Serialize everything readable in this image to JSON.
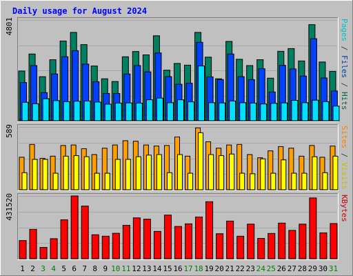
{
  "chart_data": {
    "type": "bar",
    "title": "Daily usage for August 2024",
    "categories": [
      "1",
      "2",
      "3",
      "4",
      "5",
      "6",
      "7",
      "8",
      "9",
      "10",
      "11",
      "12",
      "13",
      "14",
      "15",
      "16",
      "17",
      "18",
      "19",
      "20",
      "21",
      "22",
      "23",
      "24",
      "25",
      "26",
      "27",
      "28",
      "29",
      "30",
      "31"
    ],
    "weekend_days": [
      "3",
      "4",
      "10",
      "11",
      "17",
      "18",
      "24",
      "25",
      "31"
    ],
    "panels": [
      {
        "key": "hits",
        "max_label": "4801",
        "ylim": [
          0,
          4801
        ],
        "legend": [
          {
            "label": "Pages",
            "color": "#00c0d0"
          },
          {
            "label": " / ",
            "color": "#404040"
          },
          {
            "label": "Files",
            "color": "#0040a0"
          },
          {
            "label": " / ",
            "color": "#404040"
          },
          {
            "label": "Hits",
            "color": "#006040"
          }
        ],
        "series": [
          {
            "name": "Hits",
            "color": "#008060",
            "values": [
              2370,
              3180,
              2100,
              2910,
              3800,
              4210,
              3630,
              2610,
              2000,
              1870,
              3050,
              3300,
              3140,
              4050,
              2410,
              2730,
              2650,
              4210,
              3030,
              2000,
              3780,
              2930,
              2630,
              2910,
              2030,
              3310,
              3440,
              2850,
              4580,
              2800,
              2350
            ]
          },
          {
            "name": "Files",
            "color": "#0040ff",
            "values": [
              1820,
              2630,
              1340,
              2230,
              3050,
              3340,
              2700,
              1860,
              1300,
              1300,
              2230,
              2630,
              2330,
              3230,
              2100,
              1740,
              1790,
              3740,
              2090,
              1960,
              3180,
              2100,
              1960,
              2480,
              1370,
              2640,
              2470,
              2130,
              3910,
              2040,
              1420
            ]
          },
          {
            "name": "Pages",
            "color": "#00e0ff",
            "values": [
              880,
              810,
              1050,
              960,
              910,
              930,
              940,
              890,
              790,
              840,
              850,
              840,
              1000,
              1080,
              860,
              1000,
              900,
              2610,
              860,
              850,
              940,
              860,
              840,
              800,
              830,
              850,
              970,
              860,
              980,
              910,
              700
            ]
          }
        ]
      },
      {
        "key": "visits",
        "max_label": "589",
        "ylim": [
          0,
          589
        ],
        "legend": [
          {
            "label": "Sites",
            "color": "#ff8000"
          },
          {
            "label": " / ",
            "color": "#404040"
          },
          {
            "label": "Visits",
            "color": "#c0c000"
          }
        ],
        "series": [
          {
            "name": "Visits",
            "color": "#ffa000",
            "values": [
              305,
              425,
              295,
              315,
              415,
              420,
              385,
              330,
              390,
              420,
              460,
              455,
              420,
              410,
              415,
              495,
              315,
              580,
              450,
              390,
              420,
              425,
              330,
              300,
              365,
              405,
              390,
              315,
              415,
              305,
              410
            ]
          },
          {
            "name": "Sites",
            "color": "#ffff00",
            "values": [
              160,
              285,
              285,
              155,
              315,
              320,
              310,
              155,
              155,
              285,
              285,
              310,
              325,
              330,
              160,
              330,
              155,
              535,
              330,
              320,
              335,
              155,
              150,
              290,
              155,
              280,
              155,
              155,
              310,
              160,
              315
            ]
          }
        ]
      },
      {
        "key": "kbytes",
        "max_label": "431520",
        "ylim": [
          0,
          431520
        ],
        "legend": [
          {
            "label": "KBytes",
            "color": "#c00000"
          }
        ],
        "series": [
          {
            "name": "KBytes",
            "color": "#ff0000",
            "values": [
              125000,
              202000,
              78000,
              138000,
              268000,
              431520,
              362000,
              165000,
              155000,
              175000,
              230000,
              281000,
              272000,
              188000,
              300000,
              222000,
              240000,
              287000,
              392000,
              172000,
              259000,
              155000,
              238000,
              140000,
              174000,
              245000,
              195000,
              238000,
              418000,
              178000,
              242000
            ]
          }
        ]
      }
    ]
  }
}
